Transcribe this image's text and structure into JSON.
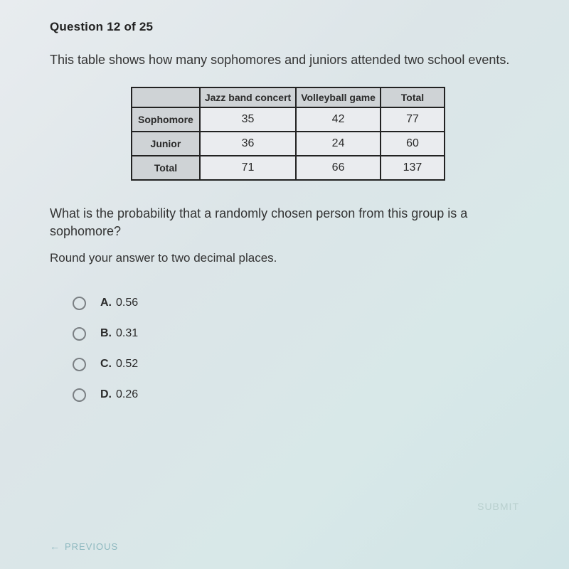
{
  "header": {
    "prefix": "Question",
    "current": 12,
    "total": 25
  },
  "question": "This table shows how many sophomores and juniors attended two school events.",
  "table": {
    "columns": [
      "Jazz band concert",
      "Volleyball game",
      "Total"
    ],
    "row_headers": [
      "Sophomore",
      "Junior",
      "Total"
    ],
    "rows": [
      [
        35,
        42,
        77
      ],
      [
        36,
        24,
        60
      ],
      [
        71,
        66,
        137
      ]
    ],
    "border_color": "#222222",
    "header_bg": "#cfd3d6",
    "cell_bg": "#eaecef",
    "header_fontsize": 14,
    "cell_fontsize": 16
  },
  "sub_question": "What is the probability that a randomly chosen person from this group is a sophomore?",
  "round_note": "Round your answer to two decimal places.",
  "options": [
    {
      "letter": "A.",
      "value": "0.56"
    },
    {
      "letter": "B.",
      "value": "0.31"
    },
    {
      "letter": "C.",
      "value": "0.52"
    },
    {
      "letter": "D.",
      "value": "0.26"
    }
  ],
  "buttons": {
    "submit": "SUBMIT",
    "previous": "PREVIOUS"
  },
  "colors": {
    "text": "#2a2a2a",
    "radio_border": "#7a7f83",
    "submit": "#a7c2bf",
    "previous": "#7badb5"
  }
}
